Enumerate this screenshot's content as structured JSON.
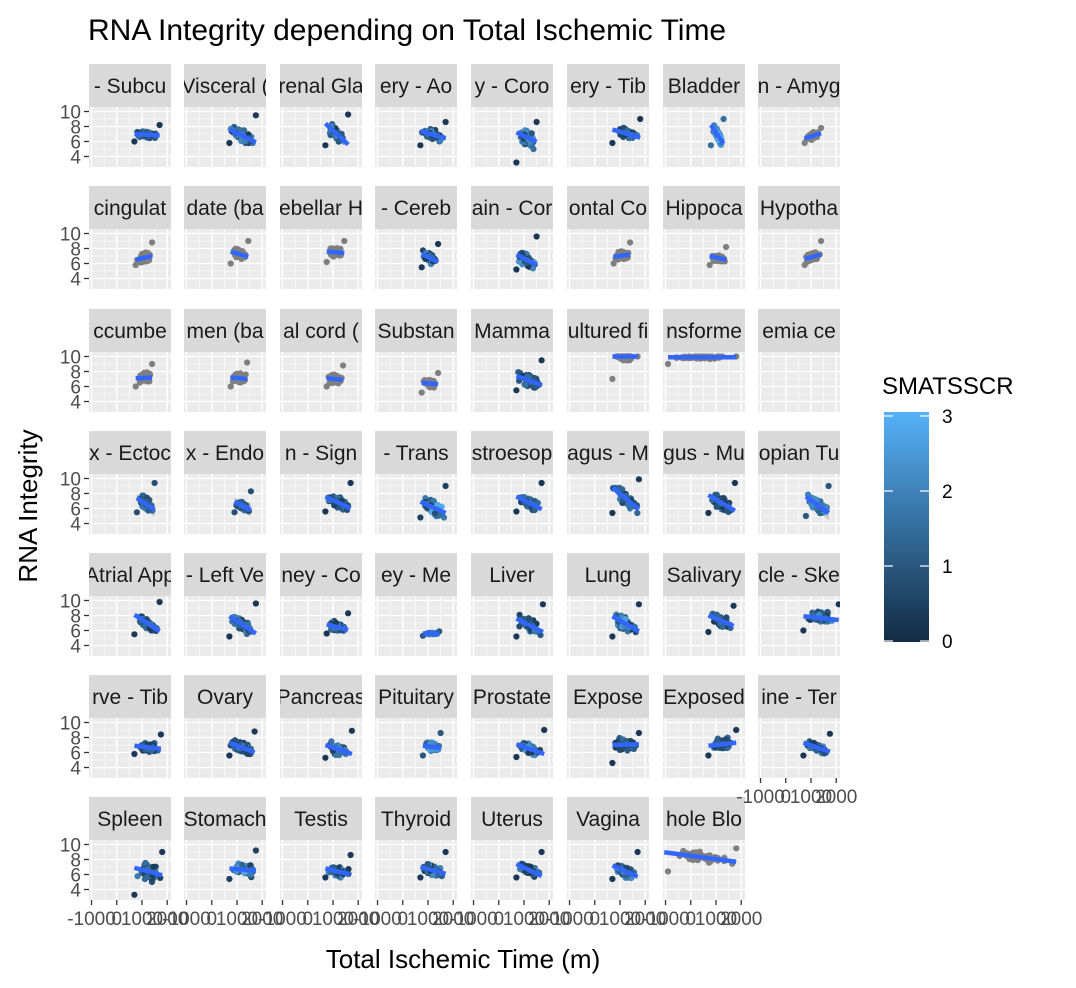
{
  "chart_data": {
    "type": "scatter",
    "title": "RNA Integrity depending on Total Ischemic Time",
    "xlabel": "Total Ischemic Time (m)",
    "ylabel": "RNA Integrity",
    "x_ticks": [
      "-1000",
      "0",
      "1000",
      "2000"
    ],
    "x_range": [
      -1100,
      2150
    ],
    "y_ticks": [
      "4",
      "6",
      "8",
      "10"
    ],
    "y_range": [
      2.6,
      10.6
    ],
    "grid": true,
    "legend": {
      "title": "SMATSSCR",
      "position": "right",
      "min": 0,
      "max": 3,
      "ticks": [
        "0",
        "1",
        "2",
        "3"
      ],
      "low_color": "#132b43",
      "high_color": "#56b1f7"
    },
    "colors": {
      "panel_bg": "#ebebeb",
      "strip_bg": "#d9d9d9",
      "grid": "#ffffff",
      "fit_line": "#3366ff",
      "na_points": "#7f7f7f",
      "ribbon": "#999999"
    },
    "facets": [
      {
        "label": "- Subcu",
        "mode": "color",
        "x": [
          700,
          1700
        ],
        "y": [
          6.0,
          8.2
        ],
        "fit": [
          7.0,
          6.8
        ],
        "smat": [
          0.3,
          1.8
        ]
      },
      {
        "label": "Visceral (",
        "mode": "color",
        "x": [
          700,
          1750
        ],
        "y": [
          5.8,
          9.5
        ],
        "fit": [
          7.6,
          5.9
        ],
        "smat": [
          0.3,
          2.2
        ]
      },
      {
        "label": "renal Gla",
        "mode": "color",
        "x": [
          700,
          1600
        ],
        "y": [
          5.5,
          9.6
        ],
        "fit": [
          8.4,
          5.6
        ],
        "smat": [
          0.3,
          2.5
        ]
      },
      {
        "label": "ery - Ao",
        "mode": "color",
        "x": [
          700,
          1700
        ],
        "y": [
          5.5,
          8.6
        ],
        "fit": [
          7.4,
          6.4
        ],
        "smat": [
          0.3,
          2.2
        ]
      },
      {
        "label": "y - Coro",
        "mode": "color",
        "x": [
          700,
          1500
        ],
        "y": [
          3.2,
          8.6
        ],
        "fit": [
          7.2,
          6.0
        ],
        "smat": [
          0.3,
          2.5
        ]
      },
      {
        "label": "ery - Tib",
        "mode": "color",
        "x": [
          700,
          1800
        ],
        "y": [
          5.8,
          9.0
        ],
        "fit": [
          7.6,
          6.5
        ],
        "smat": [
          0.3,
          2.0
        ]
      },
      {
        "label": "Bladder",
        "mode": "color",
        "x": [
          800,
          1300
        ],
        "y": [
          5.5,
          9.0
        ],
        "fit": [
          8.2,
          5.7
        ],
        "smat": [
          1.5,
          2.9
        ]
      },
      {
        "label": "n - Amyg",
        "mode": "na",
        "x": [
          750,
          1400
        ],
        "y": [
          5.8,
          7.8
        ],
        "fit": [
          6.4,
          7.1
        ]
      },
      {
        "label": "cingulat",
        "mode": "na",
        "x": [
          750,
          1400
        ],
        "y": [
          5.8,
          8.8
        ],
        "fit": [
          6.5,
          7.0
        ]
      },
      {
        "label": "date (ba",
        "mode": "na",
        "x": [
          750,
          1450
        ],
        "y": [
          6.0,
          9.0
        ],
        "fit": [
          7.6,
          6.9
        ]
      },
      {
        "label": "ebellar H",
        "mode": "na",
        "x": [
          750,
          1450
        ],
        "y": [
          6.2,
          9.0
        ],
        "fit": [
          7.6,
          7.4
        ]
      },
      {
        "label": "- Cereb",
        "mode": "color",
        "x": [
          750,
          1400
        ],
        "y": [
          5.5,
          8.6
        ],
        "fit": [
          7.3,
          6.2
        ],
        "smat": [
          0.3,
          2.6
        ]
      },
      {
        "label": "ain - Cor",
        "mode": "color",
        "x": [
          700,
          1500
        ],
        "y": [
          5.2,
          9.6
        ],
        "fit": [
          7.2,
          5.8
        ],
        "smat": [
          0.3,
          2.5
        ]
      },
      {
        "label": "ontal Co",
        "mode": "na",
        "x": [
          750,
          1400
        ],
        "y": [
          6.0,
          8.8
        ],
        "fit": [
          6.9,
          7.2
        ]
      },
      {
        "label": "Hippoca",
        "mode": "na",
        "x": [
          750,
          1400
        ],
        "y": [
          5.8,
          8.2
        ],
        "fit": [
          7.0,
          6.5
        ]
      },
      {
        "label": "Hypotha",
        "mode": "na",
        "x": [
          750,
          1400
        ],
        "y": [
          5.8,
          9.0
        ],
        "fit": [
          6.6,
          7.2
        ]
      },
      {
        "label": "ccumbe",
        "mode": "na",
        "x": [
          750,
          1400
        ],
        "y": [
          6.0,
          9.0
        ],
        "fit": [
          7.1,
          7.2
        ]
      },
      {
        "label": "men (ba",
        "mode": "na",
        "x": [
          750,
          1400
        ],
        "y": [
          6.0,
          9.2
        ],
        "fit": [
          7.2,
          7.0
        ]
      },
      {
        "label": "al cord (",
        "mode": "na",
        "x": [
          750,
          1400
        ],
        "y": [
          6.0,
          8.8
        ],
        "fit": [
          7.1,
          6.9
        ]
      },
      {
        "label": "Substan",
        "mode": "na",
        "x": [
          750,
          1400
        ],
        "y": [
          5.2,
          7.8
        ],
        "fit": [
          6.5,
          6.3
        ]
      },
      {
        "label": "Mamma",
        "mode": "color",
        "x": [
          700,
          1700
        ],
        "y": [
          5.5,
          9.5
        ],
        "fit": [
          7.4,
          6.2
        ],
        "smat": [
          0.3,
          1.6
        ]
      },
      {
        "label": "ultured fi",
        "mode": "na",
        "x": [
          700,
          1700
        ],
        "y": [
          7.0,
          10.0
        ],
        "fit": [
          10.0,
          10.0
        ]
      },
      {
        "label": "nsforme",
        "mode": "na",
        "x": [
          -900,
          1800
        ],
        "y": [
          9.0,
          10.0
        ],
        "fit": [
          9.9,
          9.9
        ]
      },
      {
        "label": "emia ce",
        "mode": "none"
      },
      {
        "label": "x - Ectoc",
        "mode": "color",
        "x": [
          800,
          1500
        ],
        "y": [
          5.5,
          9.4
        ],
        "fit": [
          7.4,
          5.8
        ],
        "smat": [
          0.8,
          1.8
        ],
        "ribbon": true
      },
      {
        "label": "x - Endo",
        "mode": "color",
        "x": [
          900,
          1550
        ],
        "y": [
          5.5,
          8.3
        ],
        "fit": [
          6.9,
          5.8
        ],
        "smat": [
          0.8,
          1.8
        ],
        "ribbon": true
      },
      {
        "label": "n - Sign",
        "mode": "color",
        "x": [
          700,
          1700
        ],
        "y": [
          5.6,
          9.4
        ],
        "fit": [
          7.6,
          6.0
        ],
        "smat": [
          0.3,
          1.8
        ]
      },
      {
        "label": "- Trans",
        "mode": "color",
        "x": [
          700,
          1700
        ],
        "y": [
          4.8,
          9.0
        ],
        "fit": [
          6.9,
          5.4
        ],
        "smat": [
          0.5,
          2.9
        ]
      },
      {
        "label": "stroesop",
        "mode": "color",
        "x": [
          700,
          1700
        ],
        "y": [
          5.6,
          9.4
        ],
        "fit": [
          7.6,
          5.9
        ],
        "smat": [
          0.3,
          1.8
        ]
      },
      {
        "label": "agus - M",
        "mode": "color",
        "x": [
          700,
          1750
        ],
        "y": [
          5.4,
          9.9
        ],
        "fit": [
          8.8,
          5.9
        ],
        "smat": [
          0.3,
          1.9
        ]
      },
      {
        "label": "gus - Mu",
        "mode": "color",
        "x": [
          700,
          1750
        ],
        "y": [
          5.4,
          9.4
        ],
        "fit": [
          7.8,
          5.7
        ],
        "smat": [
          0.3,
          1.8
        ]
      },
      {
        "label": "opian Tu",
        "mode": "color",
        "x": [
          800,
          1700
        ],
        "y": [
          5.0,
          9.0
        ],
        "fit": [
          7.6,
          5.4
        ],
        "smat": [
          1.0,
          2.6
        ],
        "ribbon": true
      },
      {
        "label": "Atrial App",
        "mode": "color",
        "x": [
          700,
          1700
        ],
        "y": [
          5.5,
          9.8
        ],
        "fit": [
          8.1,
          5.9
        ],
        "smat": [
          0.3,
          2.0
        ]
      },
      {
        "label": "- Left Ve",
        "mode": "color",
        "x": [
          700,
          1750
        ],
        "y": [
          5.2,
          9.6
        ],
        "fit": [
          7.9,
          5.6
        ],
        "smat": [
          0.3,
          2.0
        ]
      },
      {
        "label": "ney - Co",
        "mode": "color",
        "x": [
          750,
          1600
        ],
        "y": [
          5.6,
          8.3
        ],
        "fit": [
          6.8,
          6.1
        ],
        "smat": [
          0.3,
          2.4
        ]
      },
      {
        "label": "ey - Me",
        "mode": "color",
        "x": [
          800,
          1450
        ],
        "y": [
          5.3,
          5.9
        ],
        "fit": [
          5.6,
          5.6
        ],
        "smat": [
          1.0,
          2.6
        ]
      },
      {
        "label": "Liver",
        "mode": "color",
        "x": [
          700,
          1750
        ],
        "y": [
          5.2,
          9.5
        ],
        "fit": [
          7.6,
          5.8
        ],
        "smat": [
          0.3,
          2.4
        ]
      },
      {
        "label": "Lung",
        "mode": "color",
        "x": [
          700,
          1750
        ],
        "y": [
          5.2,
          9.5
        ],
        "fit": [
          7.9,
          5.9
        ],
        "smat": [
          0.3,
          2.6
        ]
      },
      {
        "label": "Salivary",
        "mode": "color",
        "x": [
          700,
          1700
        ],
        "y": [
          5.8,
          9.3
        ],
        "fit": [
          8.0,
          6.6
        ],
        "smat": [
          0.3,
          2.1
        ]
      },
      {
        "label": "cle - Ske",
        "mode": "color",
        "x": [
          700,
          2100
        ],
        "y": [
          6.0,
          9.5
        ],
        "fit": [
          7.9,
          7.4
        ],
        "smat": [
          0.3,
          2.1
        ]
      },
      {
        "label": "rve - Tib",
        "mode": "color",
        "x": [
          700,
          1750
        ],
        "y": [
          5.8,
          8.4
        ],
        "fit": [
          6.9,
          6.5
        ],
        "smat": [
          0.3,
          1.6
        ]
      },
      {
        "label": "Ovary",
        "mode": "color",
        "x": [
          700,
          1700
        ],
        "y": [
          5.6,
          8.8
        ],
        "fit": [
          7.3,
          6.0
        ],
        "smat": [
          0.3,
          1.8
        ]
      },
      {
        "label": "Pancreas",
        "mode": "color",
        "x": [
          700,
          1750
        ],
        "y": [
          5.3,
          8.9
        ],
        "fit": [
          7.0,
          5.8
        ],
        "smat": [
          0.3,
          2.3
        ]
      },
      {
        "label": "Pituitary",
        "mode": "color",
        "x": [
          800,
          1500
        ],
        "y": [
          5.6,
          8.6
        ],
        "fit": [
          6.9,
          6.6
        ],
        "smat": [
          1.0,
          2.8
        ]
      },
      {
        "label": "Prostate",
        "mode": "color",
        "x": [
          700,
          1800
        ],
        "y": [
          5.4,
          9.0
        ],
        "fit": [
          7.1,
          5.8
        ],
        "smat": [
          0.3,
          2.6
        ]
      },
      {
        "label": "Expose",
        "mode": "color",
        "x": [
          700,
          1750
        ],
        "y": [
          4.6,
          8.6
        ],
        "fit": [
          7.0,
          7.1
        ],
        "smat": [
          0.3,
          1.6
        ]
      },
      {
        "label": "Exposed",
        "mode": "color",
        "x": [
          700,
          1800
        ],
        "y": [
          5.6,
          9.0
        ],
        "fit": [
          6.9,
          7.3
        ],
        "smat": [
          0.3,
          1.6
        ]
      },
      {
        "label": "ine - Ter",
        "mode": "color",
        "x": [
          700,
          1750
        ],
        "y": [
          5.6,
          8.5
        ],
        "fit": [
          7.3,
          6.1
        ],
        "smat": [
          0.3,
          2.0
        ]
      },
      {
        "label": "Spleen",
        "mode": "color",
        "x": [
          700,
          1800
        ],
        "y": [
          3.3,
          9.0
        ],
        "fit": [
          6.9,
          5.9
        ],
        "smat": [
          0.3,
          1.9
        ]
      },
      {
        "label": "Stomach",
        "mode": "color",
        "x": [
          700,
          1750
        ],
        "y": [
          5.4,
          9.2
        ],
        "fit": [
          6.8,
          6.5
        ],
        "smat": [
          0.5,
          2.9
        ]
      },
      {
        "label": "Testis",
        "mode": "color",
        "x": [
          700,
          1700
        ],
        "y": [
          5.6,
          8.6
        ],
        "fit": [
          6.8,
          6.0
        ],
        "smat": [
          0.3,
          2.5
        ]
      },
      {
        "label": "Thyroid",
        "mode": "color",
        "x": [
          700,
          1700
        ],
        "y": [
          5.6,
          9.0
        ],
        "fit": [
          7.0,
          6.1
        ],
        "smat": [
          0.3,
          2.3
        ]
      },
      {
        "label": "Uterus",
        "mode": "color",
        "x": [
          700,
          1700
        ],
        "y": [
          5.6,
          9.0
        ],
        "fit": [
          7.4,
          5.8
        ],
        "smat": [
          0.3,
          2.0
        ]
      },
      {
        "label": "Vagina",
        "mode": "color",
        "x": [
          700,
          1700
        ],
        "y": [
          5.4,
          9.0
        ],
        "fit": [
          7.2,
          5.7
        ],
        "smat": [
          0.3,
          2.3
        ]
      },
      {
        "label": "hole Blo",
        "mode": "na",
        "x": [
          -900,
          1800
        ],
        "y": [
          6.4,
          9.5
        ],
        "fit": [
          8.9,
          7.7
        ],
        "fit_from": -1050
      }
    ]
  }
}
